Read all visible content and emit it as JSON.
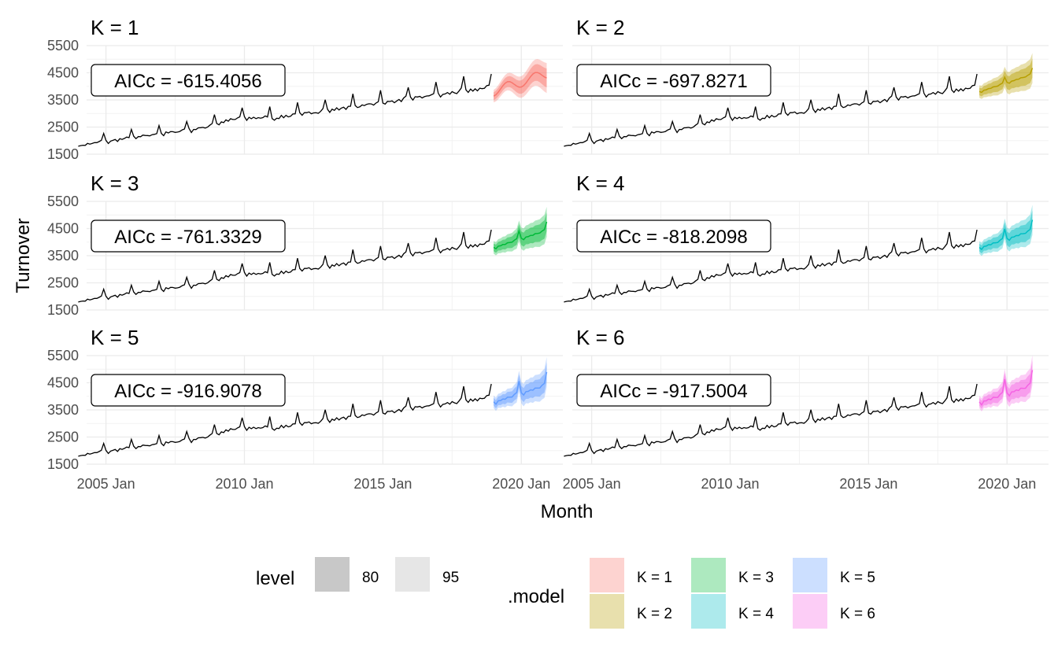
{
  "chart_data": {
    "type": "line",
    "facet_titles": [
      "K = 1",
      "K = 2",
      "K = 3",
      "K = 4",
      "K = 5",
      "K = 6"
    ],
    "aicc_labels": [
      "AICc = -615.4056",
      "AICc = -697.8271",
      "AICc = -761.3329",
      "AICc = -818.2098",
      "AICc = -916.9078",
      "AICc = -917.5004"
    ],
    "xlabel": "Month",
    "ylabel": "Turnover",
    "x_ticks": [
      "2005 Jan",
      "2010 Jan",
      "2015 Jan",
      "2020 Jan"
    ],
    "x_tick_years": [
      2005,
      2010,
      2015,
      2020
    ],
    "xlim": [
      2004.3,
      2021.5
    ],
    "y_ticks": [
      "1500",
      "2500",
      "3500",
      "4500",
      "5500"
    ],
    "y_tick_values": [
      1500,
      2500,
      3500,
      4500,
      5500
    ],
    "ylim": [
      1500,
      5500
    ],
    "grid": true,
    "history": {
      "start": "2004 Jan",
      "end": "2018 Dec",
      "approx_start_value": 1850,
      "approx_end_value": 3950,
      "note_values": "monthly turnover, rising trend with December peaks"
    },
    "forecast": {
      "start": "2019 Jan",
      "end": "2020 Dec",
      "approx_mean_start": 3800,
      "approx_mean_end": 4500,
      "interval_levels": [
        80,
        95
      ]
    },
    "legend": {
      "level": {
        "title": "level",
        "items": [
          {
            "label": "80",
            "color": "#c8c8c8"
          },
          {
            "label": "95",
            "color": "#e6e6e6"
          }
        ]
      },
      "model": {
        "title": ".model",
        "items": [
          {
            "label": "K = 1",
            "color": "#F8766D"
          },
          {
            "label": "K = 2",
            "color": "#B79F00"
          },
          {
            "label": "K = 3",
            "color": "#00BA38"
          },
          {
            "label": "K = 4",
            "color": "#00BFC4"
          },
          {
            "label": "K = 5",
            "color": "#619CFF"
          },
          {
            "label": "K = 6",
            "color": "#F564E3"
          }
        ]
      }
    }
  }
}
